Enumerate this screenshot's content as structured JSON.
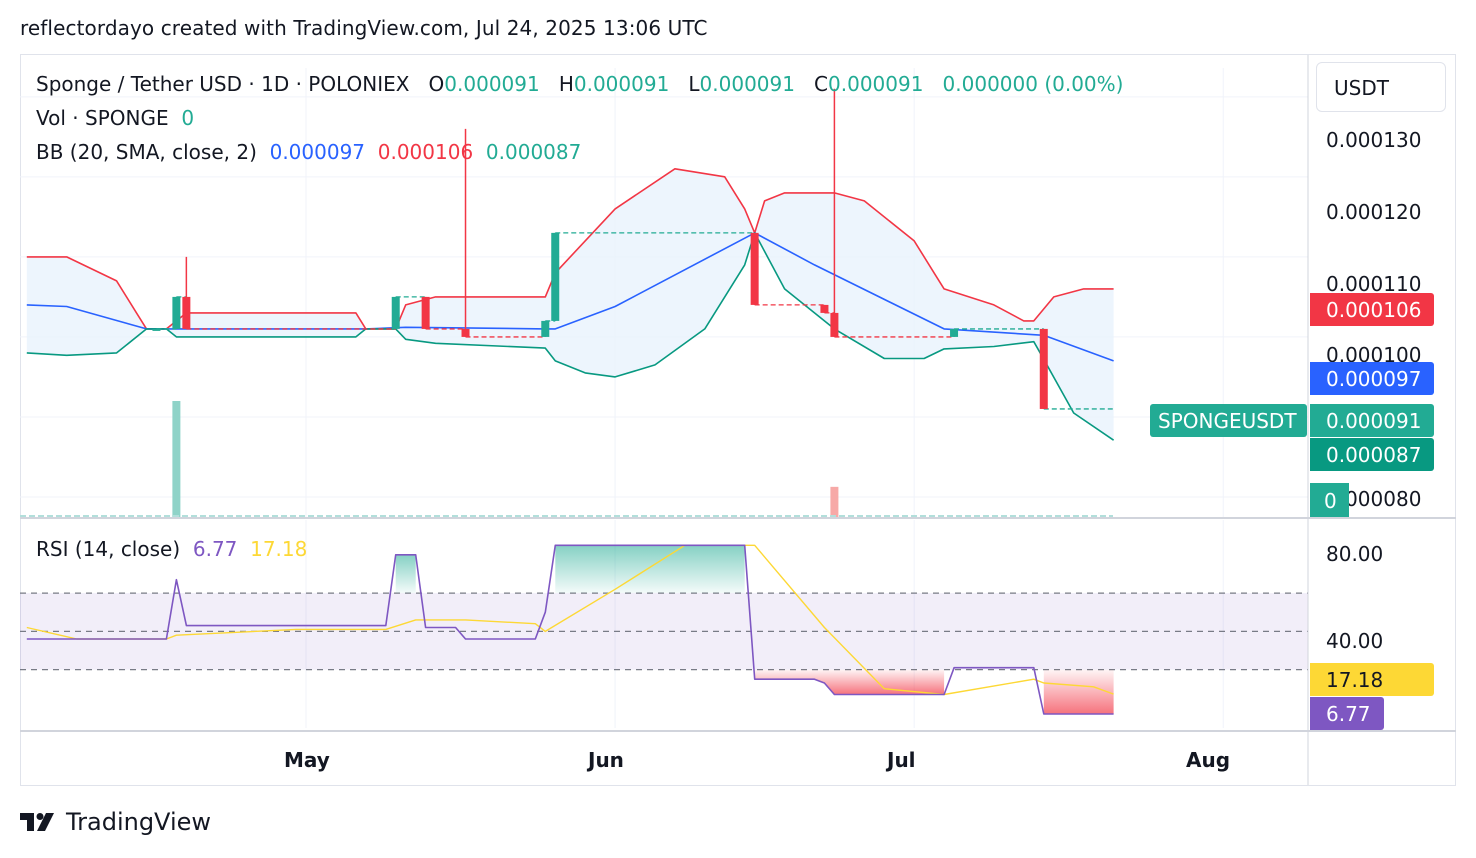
{
  "header": {
    "text": "reflectordayo created with TradingView.com, Jul 24, 2025 13:06 UTC"
  },
  "legend": {
    "symbol": "Sponge / Tether USD · 1D · POLONIEX",
    "o_label": "O",
    "o_value": "0.000091",
    "h_label": "H",
    "h_value": "0.000091",
    "l_label": "L",
    "l_value": "0.000091",
    "c_label": "C",
    "c_value": "0.000091",
    "change": "0.000000 (0.00%)",
    "vol_label": "Vol · SPONGE",
    "vol_value": "0",
    "bb_label": "BB (20, SMA, close, 2)",
    "bb_basis": "0.000097",
    "bb_upper": "0.000106",
    "bb_lower": "0.000087",
    "rsi_label": "RSI (14, close)",
    "rsi_value": "6.77",
    "rsi_ma": "17.18"
  },
  "price_axis": {
    "unit": "USDT",
    "ticks": [
      "0.000130",
      "0.000120",
      "0.000110",
      "0.000100",
      "0.000080"
    ],
    "tags": {
      "upper": "0.000106",
      "basis": "0.000097",
      "last": "0.000091",
      "lower": "0.000087",
      "volume": "0",
      "symbol": "SPONGEUSDT"
    }
  },
  "rsi_axis": {
    "ticks": [
      "80.00",
      "40.00"
    ],
    "tag_ma": "17.18",
    "tag_rsi": "6.77"
  },
  "time_axis": {
    "labels": [
      "May",
      "Jun",
      "Jul",
      "Aug"
    ]
  },
  "colors": {
    "up": "#22ab94",
    "down": "#f23645",
    "basis": "#2962ff",
    "rsi": "#7e57c2",
    "rsi_ma": "#fdd835",
    "bb_fill": "#e8f3fc",
    "rsi_band": "#7e57c2"
  },
  "footer": {
    "brand": "TradingView"
  },
  "chart_data": [
    {
      "type": "candlestick",
      "title": "Sponge / Tether USD · 1D · POLONIEX",
      "ylim": [
        7.75e-05,
        0.0001336
      ],
      "candles": [
        {
          "date": "2025-04-16",
          "o": 0.000101,
          "h": 0.000101,
          "l": 0.000101,
          "c": 0.000101
        },
        {
          "date": "2025-04-18",
          "o": 0.000101,
          "h": 0.000105,
          "l": 0.000101,
          "c": 0.000105
        },
        {
          "date": "2025-04-19",
          "o": 0.000105,
          "h": 0.00011,
          "l": 0.000101,
          "c": 0.000101
        },
        {
          "date": "2025-05-10",
          "o": 0.000101,
          "h": 0.000105,
          "l": 0.000101,
          "c": 0.000105
        },
        {
          "date": "2025-05-13",
          "o": 0.000105,
          "h": 0.000105,
          "l": 0.000101,
          "c": 0.000101
        },
        {
          "date": "2025-05-17",
          "o": 0.000101,
          "h": 0.000126,
          "l": 0.0001,
          "c": 0.0001
        },
        {
          "date": "2025-05-25",
          "o": 0.0001,
          "h": 0.000102,
          "l": 0.0001,
          "c": 0.000102
        },
        {
          "date": "2025-05-26",
          "o": 0.000102,
          "h": 0.000113,
          "l": 0.000102,
          "c": 0.000113
        },
        {
          "date": "2025-06-15",
          "o": 0.000113,
          "h": 0.000113,
          "l": 0.000104,
          "c": 0.000104
        },
        {
          "date": "2025-06-22",
          "o": 0.000104,
          "h": 0.000104,
          "l": 0.000103,
          "c": 0.000103
        },
        {
          "date": "2025-06-23",
          "o": 0.000103,
          "h": 0.000131,
          "l": 0.0001,
          "c": 0.0001
        },
        {
          "date": "2025-07-05",
          "o": 0.0001,
          "h": 0.000101,
          "l": 0.0001,
          "c": 0.000101
        },
        {
          "date": "2025-07-14",
          "o": 0.000101,
          "h": 0.000101,
          "l": 9.1e-05,
          "c": 9.1e-05
        }
      ],
      "volume": [
        {
          "date": "2025-04-18",
          "value": 1,
          "dir": "up"
        },
        {
          "date": "2025-06-23",
          "value": 0.26,
          "dir": "down"
        }
      ],
      "bollinger": {
        "upper": [
          {
            "date": "2025-04-03",
            "v": 0.00011
          },
          {
            "date": "2025-04-07",
            "v": 0.00011
          },
          {
            "date": "2025-04-12",
            "v": 0.000107
          },
          {
            "date": "2025-04-14",
            "v": 0.000103
          },
          {
            "date": "2025-04-15",
            "v": 0.000101
          },
          {
            "date": "2025-04-17",
            "v": 0.000101
          },
          {
            "date": "2025-04-19",
            "v": 0.000103
          },
          {
            "date": "2025-05-06",
            "v": 0.000103
          },
          {
            "date": "2025-05-07",
            "v": 0.000101
          },
          {
            "date": "2025-05-10",
            "v": 0.000101
          },
          {
            "date": "2025-05-11",
            "v": 0.000104
          },
          {
            "date": "2025-05-14",
            "v": 0.000105
          },
          {
            "date": "2025-05-25",
            "v": 0.000105
          },
          {
            "date": "2025-05-26",
            "v": 0.000108
          },
          {
            "date": "2025-06-01",
            "v": 0.000116
          },
          {
            "date": "2025-06-07",
            "v": 0.000121
          },
          {
            "date": "2025-06-12",
            "v": 0.00012
          },
          {
            "date": "2025-06-14",
            "v": 0.000116
          },
          {
            "date": "2025-06-15",
            "v": 0.000113
          },
          {
            "date": "2025-06-16",
            "v": 0.000117
          },
          {
            "date": "2025-06-18",
            "v": 0.000118
          },
          {
            "date": "2025-06-23",
            "v": 0.000118
          },
          {
            "date": "2025-06-26",
            "v": 0.000117
          },
          {
            "date": "2025-07-01",
            "v": 0.000112
          },
          {
            "date": "2025-07-03",
            "v": 0.000108
          },
          {
            "date": "2025-07-04",
            "v": 0.000106
          },
          {
            "date": "2025-07-09",
            "v": 0.000104
          },
          {
            "date": "2025-07-12",
            "v": 0.000102
          },
          {
            "date": "2025-07-13",
            "v": 0.000102
          },
          {
            "date": "2025-07-15",
            "v": 0.000105
          },
          {
            "date": "2025-07-18",
            "v": 0.000106
          },
          {
            "date": "2025-07-21",
            "v": 0.000106
          }
        ],
        "basis": [
          {
            "date": "2025-04-03",
            "v": 0.000104
          },
          {
            "date": "2025-04-07",
            "v": 0.0001038
          },
          {
            "date": "2025-04-15",
            "v": 0.000101
          },
          {
            "date": "2025-04-17",
            "v": 0.000101
          },
          {
            "date": "2025-05-07",
            "v": 0.000101
          },
          {
            "date": "2025-05-11",
            "v": 0.0001012
          },
          {
            "date": "2025-05-25",
            "v": 0.000101
          },
          {
            "date": "2025-05-26",
            "v": 0.000101
          },
          {
            "date": "2025-06-01",
            "v": 0.0001038
          },
          {
            "date": "2025-06-15",
            "v": 0.000113
          },
          {
            "date": "2025-06-21",
            "v": 0.000109
          },
          {
            "date": "2025-07-04",
            "v": 0.000101
          },
          {
            "date": "2025-07-14",
            "v": 0.0001002
          },
          {
            "date": "2025-07-21",
            "v": 9.7e-05
          }
        ],
        "lower": [
          {
            "date": "2025-04-03",
            "v": 9.8e-05
          },
          {
            "date": "2025-04-07",
            "v": 9.77e-05
          },
          {
            "date": "2025-04-12",
            "v": 9.8e-05
          },
          {
            "date": "2025-04-15",
            "v": 0.000101
          },
          {
            "date": "2025-04-17",
            "v": 0.000101
          },
          {
            "date": "2025-04-18",
            "v": 0.0001
          },
          {
            "date": "2025-05-06",
            "v": 0.0001
          },
          {
            "date": "2025-05-07",
            "v": 0.000101
          },
          {
            "date": "2025-05-10",
            "v": 0.000101
          },
          {
            "date": "2025-05-11",
            "v": 9.97e-05
          },
          {
            "date": "2025-05-14",
            "v": 9.92e-05
          },
          {
            "date": "2025-05-25",
            "v": 9.86e-05
          },
          {
            "date": "2025-05-26",
            "v": 9.7e-05
          },
          {
            "date": "2025-05-29",
            "v": 9.55e-05
          },
          {
            "date": "2025-06-01",
            "v": 9.5e-05
          },
          {
            "date": "2025-06-05",
            "v": 9.65e-05
          },
          {
            "date": "2025-06-10",
            "v": 0.000101
          },
          {
            "date": "2025-06-14",
            "v": 0.000109
          },
          {
            "date": "2025-06-15",
            "v": 0.000113
          },
          {
            "date": "2025-06-18",
            "v": 0.000106
          },
          {
            "date": "2025-06-23",
            "v": 0.000101
          },
          {
            "date": "2025-06-28",
            "v": 9.73e-05
          },
          {
            "date": "2025-07-02",
            "v": 9.73e-05
          },
          {
            "date": "2025-07-04",
            "v": 9.85e-05
          },
          {
            "date": "2025-07-09",
            "v": 9.88e-05
          },
          {
            "date": "2025-07-13",
            "v": 9.94e-05
          },
          {
            "date": "2025-07-14",
            "v": 9.72e-05
          },
          {
            "date": "2025-07-17",
            "v": 9.05e-05
          },
          {
            "date": "2025-07-21",
            "v": 8.71e-05
          }
        ]
      }
    },
    {
      "type": "line",
      "title": "RSI (14, close)",
      "ylim": [
        0,
        100
      ],
      "bands": [
        30,
        50,
        70
      ],
      "series": [
        {
          "name": "RSI",
          "points": [
            {
              "date": "2025-04-03",
              "v": 46
            },
            {
              "date": "2025-04-17",
              "v": 46
            },
            {
              "date": "2025-04-18",
              "v": 77
            },
            {
              "date": "2025-04-19",
              "v": 53
            },
            {
              "date": "2025-05-09",
              "v": 53
            },
            {
              "date": "2025-05-10",
              "v": 90
            },
            {
              "date": "2025-05-12",
              "v": 90
            },
            {
              "date": "2025-05-13",
              "v": 52
            },
            {
              "date": "2025-05-16",
              "v": 52
            },
            {
              "date": "2025-05-17",
              "v": 46
            },
            {
              "date": "2025-05-24",
              "v": 46
            },
            {
              "date": "2025-05-25",
              "v": 60
            },
            {
              "date": "2025-05-26",
              "v": 95
            },
            {
              "date": "2025-06-14",
              "v": 95
            },
            {
              "date": "2025-06-15",
              "v": 25
            },
            {
              "date": "2025-06-21",
              "v": 25
            },
            {
              "date": "2025-06-22",
              "v": 23
            },
            {
              "date": "2025-06-23",
              "v": 17
            },
            {
              "date": "2025-07-04",
              "v": 17
            },
            {
              "date": "2025-07-05",
              "v": 31
            },
            {
              "date": "2025-07-13",
              "v": 31
            },
            {
              "date": "2025-07-14",
              "v": 6.77
            },
            {
              "date": "2025-07-21",
              "v": 6.77
            }
          ]
        },
        {
          "name": "RSI-based MA",
          "points": [
            {
              "date": "2025-04-03",
              "v": 52
            },
            {
              "date": "2025-04-08",
              "v": 46
            },
            {
              "date": "2025-04-17",
              "v": 46
            },
            {
              "date": "2025-04-18",
              "v": 48
            },
            {
              "date": "2025-04-30",
              "v": 51
            },
            {
              "date": "2025-05-09",
              "v": 51
            },
            {
              "date": "2025-05-12",
              "v": 56
            },
            {
              "date": "2025-05-17",
              "v": 56
            },
            {
              "date": "2025-05-24",
              "v": 54
            },
            {
              "date": "2025-05-25",
              "v": 50
            },
            {
              "date": "2025-06-01",
              "v": 72
            },
            {
              "date": "2025-06-08",
              "v": 95
            },
            {
              "date": "2025-06-15",
              "v": 95
            },
            {
              "date": "2025-06-22",
              "v": 52
            },
            {
              "date": "2025-06-28",
              "v": 20
            },
            {
              "date": "2025-07-04",
              "v": 17
            },
            {
              "date": "2025-07-13",
              "v": 25
            },
            {
              "date": "2025-07-14",
              "v": 23
            },
            {
              "date": "2025-07-19",
              "v": 21
            },
            {
              "date": "2025-07-21",
              "v": 17.18
            }
          ]
        }
      ]
    }
  ]
}
